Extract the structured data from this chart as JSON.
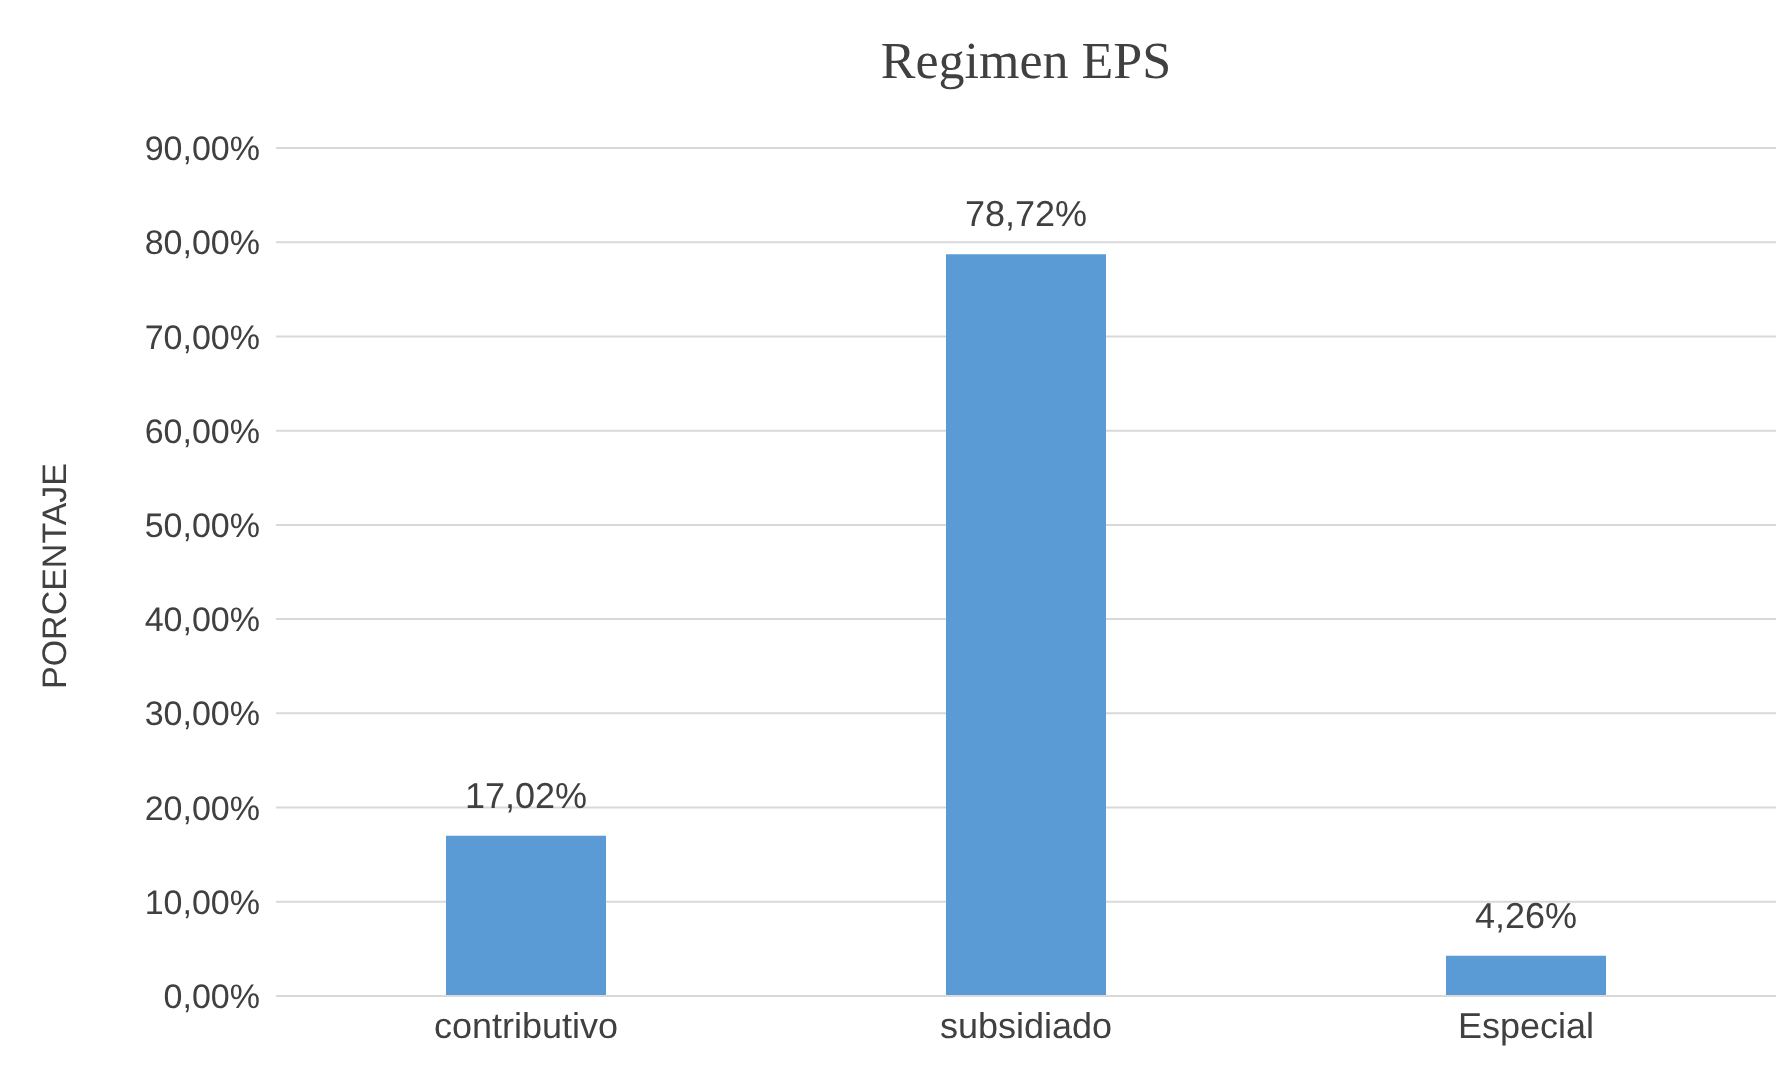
{
  "chart_data": {
    "type": "bar",
    "title": "Regimen EPS",
    "ylabel": "PORCENTAJE",
    "categories": [
      "contributivo",
      "subsidiado",
      "Especial"
    ],
    "values": [
      17.02,
      78.72,
      4.26
    ],
    "value_labels": [
      "17,02%",
      "78,72%",
      "4,26%"
    ],
    "color": "#5b9bd5",
    "ylim": [
      0,
      90
    ],
    "yticks": [
      {
        "value": 0,
        "label": "0,00%"
      },
      {
        "value": 10,
        "label": "10,00%"
      },
      {
        "value": 20,
        "label": "20,00%"
      },
      {
        "value": 30,
        "label": "30,00%"
      },
      {
        "value": 40,
        "label": "40,00%"
      },
      {
        "value": 50,
        "label": "50,00%"
      },
      {
        "value": 60,
        "label": "60,00%"
      },
      {
        "value": 70,
        "label": "70,00%"
      },
      {
        "value": 80,
        "label": "80,00%"
      },
      {
        "value": 90,
        "label": "90,00%"
      }
    ],
    "grid": "y",
    "legend": false
  }
}
